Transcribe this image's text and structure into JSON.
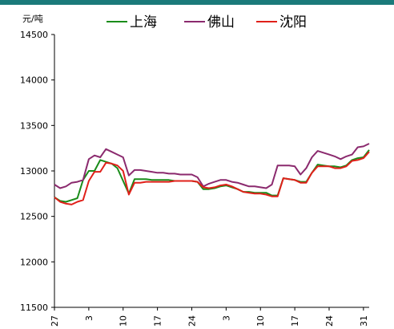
{
  "chart_data": {
    "type": "line",
    "unit_label": "元/吨",
    "ylim": [
      11500,
      14500
    ],
    "y_ticks": [
      11500,
      12000,
      12500,
      13000,
      13500,
      14000,
      14500
    ],
    "x_tick_labels": [
      "27",
      "3",
      "10",
      "17",
      "24",
      "3",
      "10",
      "17",
      "24",
      "31"
    ],
    "x_tick_positions": [
      0,
      6,
      12,
      18,
      24,
      30,
      36,
      42,
      48,
      54
    ],
    "legend_position": "top",
    "grid": false,
    "series": [
      {
        "name": "上海",
        "color": "#1a8c1a",
        "points": [
          [
            0,
            12710
          ],
          [
            1,
            12670
          ],
          [
            2,
            12660
          ],
          [
            3,
            12680
          ],
          [
            4,
            12700
          ],
          [
            5,
            12900
          ],
          [
            6,
            13000
          ],
          [
            7,
            13000
          ],
          [
            8,
            13120
          ],
          [
            9,
            13100
          ],
          [
            10,
            13080
          ],
          [
            11,
            13030
          ],
          [
            13,
            12750
          ],
          [
            14,
            12910
          ],
          [
            15,
            12910
          ],
          [
            16,
            12910
          ],
          [
            17,
            12900
          ],
          [
            18,
            12900
          ],
          [
            19,
            12900
          ],
          [
            20,
            12900
          ],
          [
            21,
            12890
          ],
          [
            22,
            12890
          ],
          [
            23,
            12890
          ],
          [
            24,
            12890
          ],
          [
            25,
            12880
          ],
          [
            26,
            12800
          ],
          [
            27,
            12800
          ],
          [
            28,
            12810
          ],
          [
            29,
            12830
          ],
          [
            30,
            12840
          ],
          [
            31,
            12820
          ],
          [
            32,
            12800
          ],
          [
            33,
            12770
          ],
          [
            34,
            12770
          ],
          [
            35,
            12760
          ],
          [
            36,
            12760
          ],
          [
            37,
            12760
          ],
          [
            38,
            12730
          ],
          [
            39,
            12730
          ],
          [
            40,
            12920
          ],
          [
            41,
            12910
          ],
          [
            42,
            12900
          ],
          [
            43,
            12880
          ],
          [
            44,
            12880
          ],
          [
            45,
            12980
          ],
          [
            46,
            13070
          ],
          [
            47,
            13060
          ],
          [
            48,
            13050
          ],
          [
            49,
            13050
          ],
          [
            50,
            13040
          ],
          [
            51,
            13060
          ],
          [
            52,
            13120
          ],
          [
            53,
            13140
          ],
          [
            54,
            13150
          ],
          [
            55,
            13230
          ]
        ]
      },
      {
        "name": "佛山",
        "color": "#8b2a6e",
        "points": [
          [
            0,
            12850
          ],
          [
            1,
            12810
          ],
          [
            2,
            12830
          ],
          [
            3,
            12870
          ],
          [
            4,
            12880
          ],
          [
            5,
            12900
          ],
          [
            6,
            13130
          ],
          [
            7,
            13170
          ],
          [
            8,
            13150
          ],
          [
            9,
            13240
          ],
          [
            10,
            13210
          ],
          [
            11,
            13180
          ],
          [
            12,
            13150
          ],
          [
            13,
            12950
          ],
          [
            14,
            13010
          ],
          [
            15,
            13010
          ],
          [
            16,
            13000
          ],
          [
            17,
            12990
          ],
          [
            18,
            12980
          ],
          [
            19,
            12980
          ],
          [
            20,
            12970
          ],
          [
            21,
            12970
          ],
          [
            22,
            12960
          ],
          [
            23,
            12960
          ],
          [
            24,
            12960
          ],
          [
            25,
            12930
          ],
          [
            26,
            12830
          ],
          [
            27,
            12860
          ],
          [
            28,
            12880
          ],
          [
            29,
            12900
          ],
          [
            30,
            12900
          ],
          [
            31,
            12880
          ],
          [
            32,
            12870
          ],
          [
            33,
            12850
          ],
          [
            34,
            12830
          ],
          [
            35,
            12830
          ],
          [
            36,
            12820
          ],
          [
            37,
            12810
          ],
          [
            38,
            12850
          ],
          [
            39,
            13060
          ],
          [
            40,
            13060
          ],
          [
            41,
            13060
          ],
          [
            42,
            13050
          ],
          [
            43,
            12960
          ],
          [
            44,
            13030
          ],
          [
            45,
            13150
          ],
          [
            46,
            13220
          ],
          [
            47,
            13200
          ],
          [
            48,
            13180
          ],
          [
            49,
            13160
          ],
          [
            50,
            13130
          ],
          [
            51,
            13160
          ],
          [
            52,
            13180
          ],
          [
            53,
            13260
          ],
          [
            54,
            13270
          ],
          [
            55,
            13300
          ]
        ]
      },
      {
        "name": "沈阳",
        "color": "#e0201a",
        "points": [
          [
            0,
            12710
          ],
          [
            1,
            12660
          ],
          [
            2,
            12640
          ],
          [
            3,
            12630
          ],
          [
            4,
            12660
          ],
          [
            5,
            12680
          ],
          [
            6,
            12890
          ],
          [
            7,
            12990
          ],
          [
            8,
            12990
          ],
          [
            9,
            13090
          ],
          [
            10,
            13080
          ],
          [
            11,
            13060
          ],
          [
            12,
            13000
          ],
          [
            13,
            12740
          ],
          [
            14,
            12870
          ],
          [
            15,
            12870
          ],
          [
            16,
            12880
          ],
          [
            17,
            12880
          ],
          [
            18,
            12880
          ],
          [
            19,
            12880
          ],
          [
            20,
            12880
          ],
          [
            21,
            12890
          ],
          [
            22,
            12890
          ],
          [
            23,
            12890
          ],
          [
            24,
            12890
          ],
          [
            25,
            12880
          ],
          [
            26,
            12820
          ],
          [
            27,
            12810
          ],
          [
            28,
            12820
          ],
          [
            29,
            12840
          ],
          [
            30,
            12850
          ],
          [
            31,
            12830
          ],
          [
            32,
            12800
          ],
          [
            33,
            12770
          ],
          [
            34,
            12760
          ],
          [
            35,
            12750
          ],
          [
            36,
            12750
          ],
          [
            37,
            12740
          ],
          [
            38,
            12720
          ],
          [
            39,
            12720
          ],
          [
            40,
            12920
          ],
          [
            41,
            12910
          ],
          [
            42,
            12900
          ],
          [
            43,
            12870
          ],
          [
            44,
            12870
          ],
          [
            45,
            12980
          ],
          [
            46,
            13050
          ],
          [
            47,
            13050
          ],
          [
            48,
            13050
          ],
          [
            49,
            13030
          ],
          [
            50,
            13030
          ],
          [
            51,
            13050
          ],
          [
            52,
            13110
          ],
          [
            53,
            13120
          ],
          [
            54,
            13140
          ],
          [
            55,
            13210
          ]
        ]
      }
    ]
  }
}
